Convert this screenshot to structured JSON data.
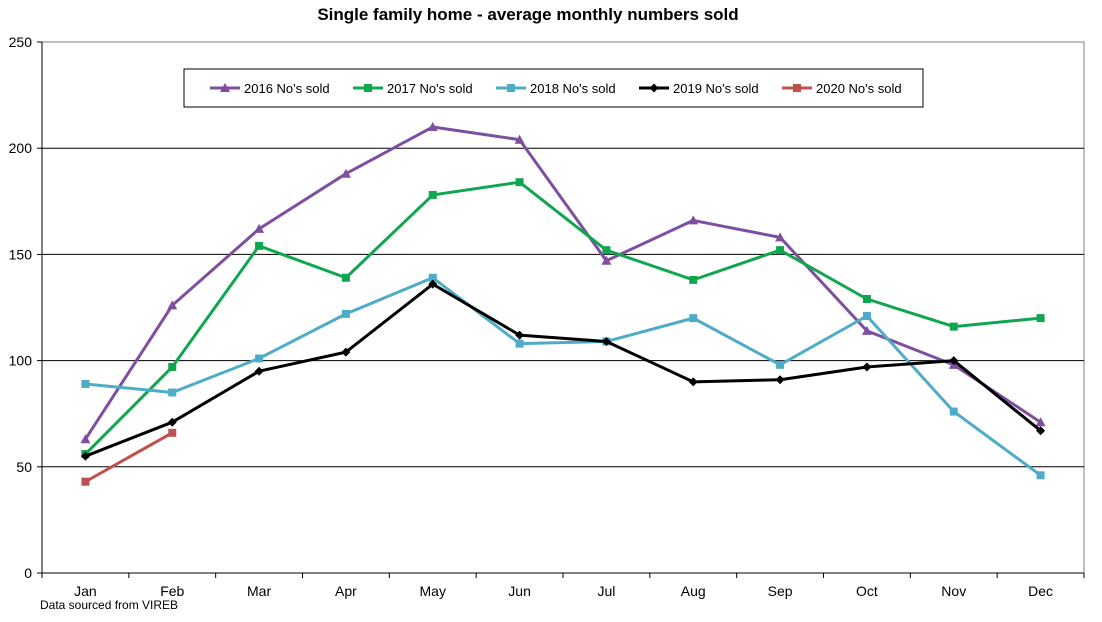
{
  "chart_data": {
    "type": "line",
    "title": "Single family home - average monthly numbers sold",
    "source_note": "Data sourced from VIREB",
    "xlabel": "",
    "ylabel": "",
    "categories": [
      "Jan",
      "Feb",
      "Mar",
      "Apr",
      "May",
      "Jun",
      "Jul",
      "Aug",
      "Sep",
      "Oct",
      "Nov",
      "Dec"
    ],
    "ylim": [
      0,
      250
    ],
    "yticks": [
      0,
      50,
      100,
      150,
      200,
      250
    ],
    "ytick_labels": [
      "0",
      "50",
      "100",
      "150",
      "200",
      "250"
    ],
    "grid": "horizontal major",
    "legend_position": "top-center",
    "series": [
      {
        "name": "2016 No's sold",
        "color": "#7f4f9f",
        "marker": "triangle",
        "values": [
          63,
          126,
          162,
          188,
          210,
          204,
          147,
          166,
          158,
          114,
          98,
          71
        ]
      },
      {
        "name": "2017 No's sold",
        "color": "#10a650",
        "marker": "square",
        "values": [
          56,
          97,
          154,
          139,
          178,
          184,
          152,
          138,
          152,
          129,
          116,
          120
        ]
      },
      {
        "name": "2018 No's sold",
        "color": "#4facc6",
        "marker": "square",
        "values": [
          89,
          85,
          101,
          122,
          139,
          108,
          109,
          120,
          98,
          121,
          76,
          46
        ]
      },
      {
        "name": "2019 No's sold",
        "color": "#000000",
        "marker": "diamond",
        "values": [
          55,
          71,
          95,
          104,
          136,
          112,
          109,
          90,
          91,
          97,
          100,
          67
        ]
      },
      {
        "name": "2020 No's sold",
        "color": "#c0504d",
        "marker": "square",
        "values": [
          43,
          66,
          null,
          null,
          null,
          null,
          null,
          null,
          null,
          null,
          null,
          null
        ]
      }
    ]
  }
}
